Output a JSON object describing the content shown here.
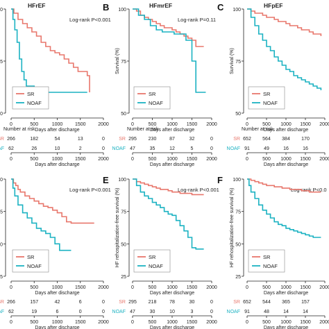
{
  "colors": {
    "SR": "#e8776c",
    "NOAF": "#1bb2c2",
    "axis": "#222222",
    "text": "#222222"
  },
  "shared": {
    "xlabel": "Days after discharge",
    "risk_title": "Number at risk",
    "x_ticks": [
      "0",
      "500",
      "1000",
      "1500",
      "2000"
    ],
    "legend": [
      "SR",
      "NOAF"
    ]
  },
  "chart_data": [
    {
      "type": "line",
      "panel": "A",
      "title": "HFrEF",
      "annotation": "Log-rank P<0.001",
      "ylabel": "",
      "ylim": [
        0.5,
        1.0
      ],
      "xlim": [
        0,
        2000
      ],
      "y_ticks": [
        "100",
        "75",
        "50"
      ],
      "series": [
        {
          "name": "SR",
          "x": [
            0,
            60,
            150,
            250,
            350,
            450,
            550,
            650,
            750,
            850,
            950,
            1050,
            1150,
            1250,
            1350,
            1450,
            1550,
            1650,
            1700
          ],
          "y": [
            1.0,
            0.98,
            0.95,
            0.93,
            0.91,
            0.89,
            0.87,
            0.84,
            0.82,
            0.8,
            0.79,
            0.78,
            0.76,
            0.74,
            0.72,
            0.7,
            0.7,
            0.68,
            0.6
          ]
        },
        {
          "name": "NOAF",
          "x": [
            0,
            40,
            80,
            130,
            180,
            230,
            280,
            330,
            420,
            500,
            1650
          ],
          "y": [
            1.0,
            0.95,
            0.9,
            0.84,
            0.76,
            0.7,
            0.66,
            0.63,
            0.63,
            0.6,
            0.6
          ]
        }
      ],
      "risk": {
        "SR": [
          "266",
          "182",
          "54",
          "13",
          "0"
        ],
        "NOAF": [
          "62",
          "26",
          "10",
          "2",
          "0"
        ]
      }
    },
    {
      "type": "line",
      "panel": "B",
      "title": "HFmrEF",
      "annotation": "Log-rank P=0.11",
      "ylabel": "Survival (%)",
      "ylim": [
        0.5,
        1.0
      ],
      "xlim": [
        0,
        2000
      ],
      "y_ticks": [
        "100",
        "75",
        "50"
      ],
      "series": [
        {
          "name": "SR",
          "x": [
            0,
            100,
            200,
            300,
            400,
            500,
            600,
            700,
            800,
            900,
            1000,
            1100,
            1200,
            1300,
            1400,
            1500,
            1600,
            1800
          ],
          "y": [
            1.0,
            0.99,
            0.97,
            0.96,
            0.95,
            0.94,
            0.93,
            0.92,
            0.91,
            0.91,
            0.9,
            0.89,
            0.88,
            0.87,
            0.86,
            0.85,
            0.82,
            0.82
          ]
        },
        {
          "name": "NOAF",
          "x": [
            0,
            150,
            300,
            450,
            600,
            750,
            900,
            1050,
            1200,
            1350,
            1500,
            1600,
            1850
          ],
          "y": [
            1.0,
            0.97,
            0.95,
            0.92,
            0.9,
            0.89,
            0.89,
            0.88,
            0.88,
            0.85,
            0.75,
            0.6,
            0.6
          ]
        }
      ],
      "risk": {
        "SR": [
          "295",
          "230",
          "87",
          "32",
          "0"
        ],
        "NOAF": [
          "47",
          "35",
          "12",
          "5",
          "0"
        ]
      }
    },
    {
      "type": "line",
      "panel": "C",
      "title": "HFpEF",
      "annotation": "",
      "ylabel": "Survival (%)",
      "ylim": [
        0.5,
        1.0
      ],
      "xlim": [
        0,
        2000
      ],
      "y_ticks": [
        "100",
        "75",
        "50"
      ],
      "series": [
        {
          "name": "SR",
          "x": [
            0,
            100,
            200,
            300,
            400,
            500,
            600,
            700,
            800,
            900,
            1000,
            1100,
            1200,
            1300,
            1400,
            1500,
            1600,
            1700,
            1800,
            1900
          ],
          "y": [
            1.0,
            0.99,
            0.98,
            0.98,
            0.97,
            0.96,
            0.96,
            0.95,
            0.94,
            0.94,
            0.93,
            0.92,
            0.92,
            0.91,
            0.9,
            0.9,
            0.89,
            0.88,
            0.88,
            0.87
          ]
        },
        {
          "name": "NOAF",
          "x": [
            0,
            100,
            200,
            300,
            400,
            500,
            600,
            700,
            800,
            900,
            1000,
            1100,
            1200,
            1300,
            1400,
            1500,
            1600,
            1700,
            1800,
            1900
          ],
          "y": [
            1.0,
            0.96,
            0.92,
            0.88,
            0.85,
            0.82,
            0.8,
            0.77,
            0.75,
            0.73,
            0.71,
            0.7,
            0.68,
            0.67,
            0.66,
            0.65,
            0.64,
            0.63,
            0.62,
            0.61
          ]
        }
      ],
      "risk": {
        "SR": [
          "652",
          "564",
          "384",
          "170",
          ""
        ],
        "NOAF": [
          "91",
          "49",
          "16",
          "16",
          ""
        ]
      }
    },
    {
      "type": "line",
      "panel": "D",
      "title": "",
      "annotation": "Log-rank P<0.001",
      "ylabel": "",
      "ylim": [
        0.25,
        1.0
      ],
      "xlim": [
        0,
        2000
      ],
      "y_ticks": [
        "100",
        "75",
        "50",
        "25"
      ],
      "series": [
        {
          "name": "SR",
          "x": [
            0,
            50,
            100,
            150,
            200,
            300,
            400,
            500,
            600,
            700,
            800,
            900,
            1000,
            1100,
            1200,
            1300,
            1800
          ],
          "y": [
            1.0,
            0.97,
            0.95,
            0.92,
            0.9,
            0.87,
            0.85,
            0.83,
            0.81,
            0.79,
            0.78,
            0.76,
            0.74,
            0.71,
            0.67,
            0.66,
            0.66
          ]
        },
        {
          "name": "NOAF",
          "x": [
            0,
            40,
            80,
            150,
            250,
            350,
            450,
            550,
            650,
            750,
            850,
            950,
            1050,
            1150,
            1300
          ],
          "y": [
            1.0,
            0.93,
            0.87,
            0.8,
            0.74,
            0.7,
            0.66,
            0.62,
            0.6,
            0.58,
            0.55,
            0.5,
            0.45,
            0.45,
            0.45
          ]
        }
      ],
      "risk": {
        "SR": [
          "266",
          "157",
          "42",
          "6",
          "0"
        ],
        "NOAF": [
          "62",
          "19",
          "6",
          "0",
          "0"
        ]
      }
    },
    {
      "type": "line",
      "panel": "E",
      "title": "",
      "annotation": "Log-rank P<0.001",
      "ylabel": "HF rehospitalization-free survival (%)",
      "ylim": [
        0.25,
        1.0
      ],
      "xlim": [
        0,
        2000
      ],
      "y_ticks": [
        "100",
        "75",
        "50",
        "25"
      ],
      "series": [
        {
          "name": "SR",
          "x": [
            0,
            100,
            200,
            300,
            400,
            500,
            600,
            700,
            800,
            900,
            1000,
            1100,
            1200,
            1300,
            1400,
            1500,
            1600,
            1800
          ],
          "y": [
            1.0,
            0.98,
            0.97,
            0.96,
            0.95,
            0.94,
            0.93,
            0.92,
            0.92,
            0.91,
            0.9,
            0.9,
            0.89,
            0.89,
            0.89,
            0.88,
            0.88,
            0.88
          ]
        },
        {
          "name": "NOAF",
          "x": [
            0,
            100,
            200,
            300,
            400,
            500,
            600,
            700,
            800,
            900,
            1000,
            1100,
            1200,
            1300,
            1400,
            1500,
            1600,
            1800
          ],
          "y": [
            1.0,
            0.95,
            0.9,
            0.87,
            0.85,
            0.82,
            0.8,
            0.78,
            0.75,
            0.73,
            0.72,
            0.68,
            0.64,
            0.6,
            0.55,
            0.47,
            0.46,
            0.46
          ]
        }
      ],
      "risk": {
        "SR": [
          "295",
          "218",
          "78",
          "30",
          "0"
        ],
        "NOAF": [
          "47",
          "30",
          "10",
          "3",
          "0"
        ]
      }
    },
    {
      "type": "line",
      "panel": "F",
      "title": "",
      "annotation": "Log-rank P<0.0",
      "ylabel": "HF rehospitalization-free survival (%)",
      "ylim": [
        0.25,
        1.0
      ],
      "xlim": [
        0,
        2000
      ],
      "y_ticks": [
        "100",
        "75",
        "50",
        "25"
      ],
      "series": [
        {
          "name": "SR",
          "x": [
            0,
            100,
            200,
            300,
            400,
            500,
            600,
            700,
            800,
            900,
            1000,
            1100,
            1200,
            1300,
            1400,
            1500,
            1600,
            1700,
            1800,
            1900
          ],
          "y": [
            1.0,
            0.99,
            0.98,
            0.97,
            0.96,
            0.95,
            0.95,
            0.94,
            0.94,
            0.93,
            0.93,
            0.92,
            0.92,
            0.92,
            0.91,
            0.91,
            0.9,
            0.9,
            0.9,
            0.9
          ]
        },
        {
          "name": "NOAF",
          "x": [
            0,
            50,
            100,
            200,
            300,
            400,
            500,
            600,
            700,
            800,
            900,
            1000,
            1100,
            1200,
            1300,
            1400,
            1500,
            1600,
            1700,
            1800,
            1900
          ],
          "y": [
            1.0,
            0.95,
            0.9,
            0.85,
            0.8,
            0.76,
            0.73,
            0.7,
            0.67,
            0.65,
            0.64,
            0.62,
            0.61,
            0.6,
            0.59,
            0.58,
            0.57,
            0.56,
            0.55,
            0.55,
            0.55
          ]
        }
      ],
      "risk": {
        "SR": [
          "652",
          "544",
          "365",
          "157",
          ""
        ],
        "NOAF": [
          "91",
          "48",
          "14",
          "14",
          ""
        ]
      }
    }
  ]
}
